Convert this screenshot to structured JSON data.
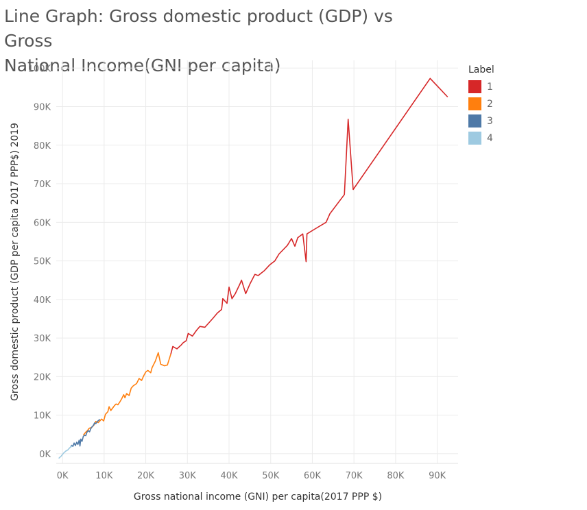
{
  "chart_data": {
    "type": "line",
    "title_lines": [
      "Line Graph: Gross domestic product (GDP) vs Gross",
      "National Income(GNI per capita)"
    ],
    "xlabel": "Gross national income (GNI) per capita(2017 PPP $)",
    "ylabel": "Gross domestic product (GDP per capita 2017 PPP$) 2019",
    "xlim": [
      -1500,
      95000
    ],
    "ylim": [
      -2500,
      102000
    ],
    "x_ticks": [
      0,
      10000,
      20000,
      30000,
      40000,
      50000,
      60000,
      70000,
      80000,
      90000
    ],
    "x_tick_labels": [
      "0K",
      "10K",
      "20K",
      "30K",
      "40K",
      "50K",
      "60K",
      "70K",
      "80K",
      "90K"
    ],
    "y_ticks": [
      0,
      10000,
      20000,
      30000,
      40000,
      50000,
      60000,
      70000,
      80000,
      90000,
      100000
    ],
    "y_tick_labels": [
      "0K",
      "10K",
      "20K",
      "30K",
      "40K",
      "50K",
      "60K",
      "70K",
      "80K",
      "90K",
      "100K"
    ],
    "grid": true,
    "legend": {
      "title": "Label",
      "placement": "right"
    },
    "series": [
      {
        "name": "1",
        "color": "#d62728",
        "x": [
          26000,
          26500,
          27500,
          28500,
          29000,
          29700,
          30200,
          31200,
          32200,
          33000,
          34200,
          35200,
          36200,
          37200,
          38200,
          38300,
          38500,
          39500,
          40000,
          40700,
          41500,
          42600,
          43000,
          44000,
          45000,
          46200,
          47000,
          48500,
          49800,
          51000,
          52000,
          54000,
          55000,
          55800,
          56500,
          57700,
          58500,
          58700,
          60500,
          63300,
          64200,
          67700,
          68600,
          69800,
          88300,
          92500
        ],
        "y": [
          25800,
          27800,
          27200,
          28200,
          28800,
          29300,
          31200,
          30500,
          32000,
          33000,
          32800,
          34000,
          35200,
          36500,
          37400,
          38200,
          40200,
          39000,
          43200,
          40200,
          41500,
          44000,
          45000,
          41500,
          44000,
          46500,
          46200,
          47500,
          49000,
          50000,
          51800,
          54000,
          55800,
          53800,
          56000,
          57000,
          49800,
          57000,
          58200,
          60000,
          62200,
          67200,
          86700,
          68500,
          97300,
          92500
        ]
      },
      {
        "name": "2",
        "color": "#ff7f0e",
        "x": [
          5000,
          5600,
          6000,
          6400,
          7000,
          7600,
          8000,
          8600,
          9400,
          9900,
          10300,
          10900,
          11200,
          11600,
          12500,
          12900,
          13300,
          13700,
          14200,
          14700,
          15000,
          15400,
          16000,
          16500,
          17000,
          17800,
          18400,
          19000,
          19500,
          20000,
          20500,
          21200,
          21500,
          22300,
          23000,
          23600,
          24500,
          25200,
          26000
        ],
        "y": [
          4800,
          5600,
          6000,
          6600,
          6800,
          7500,
          8400,
          8100,
          9000,
          8500,
          10200,
          10900,
          12200,
          11200,
          12500,
          12900,
          12700,
          13300,
          14200,
          15300,
          14500,
          15600,
          15100,
          17000,
          17600,
          18200,
          19500,
          19000,
          20200,
          21200,
          21600,
          21000,
          22300,
          24000,
          26200,
          23200,
          22800,
          23000,
          25800
        ]
      },
      {
        "name": "3",
        "color": "#4e79a7",
        "x": [
          1900,
          2200,
          2500,
          2800,
          3100,
          3400,
          3700,
          4000,
          4200,
          4400,
          4700,
          5000,
          5300,
          5600,
          5900,
          6200,
          6500,
          6800,
          7100,
          7400,
          7700,
          8000,
          8300,
          8600,
          9000
        ],
        "y": [
          1600,
          2200,
          1900,
          2800,
          2100,
          3000,
          2400,
          3500,
          2000,
          3800,
          3200,
          4500,
          4800,
          4700,
          5600,
          6000,
          5700,
          6500,
          7000,
          7300,
          8000,
          7800,
          8200,
          8600,
          8900
        ]
      },
      {
        "name": "4",
        "color": "#9ecae1",
        "x": [
          -900,
          -300,
          300,
          800,
          1300,
          1700,
          2000,
          2300
        ],
        "y": [
          -1200,
          -600,
          200,
          700,
          1000,
          1500,
          1800,
          2000
        ]
      }
    ]
  }
}
